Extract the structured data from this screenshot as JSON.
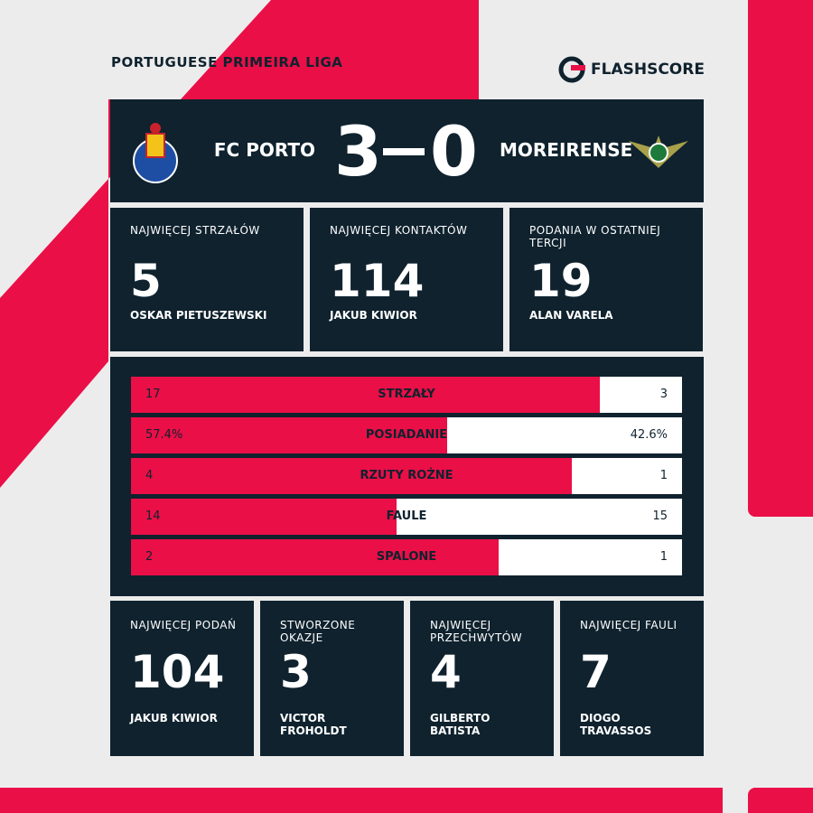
{
  "header": {
    "league": "PORTUGUESE PRIMEIRA LIGA",
    "brand": "FLASHSCORE"
  },
  "match": {
    "home_team": "FC PORTO",
    "home_score": "3",
    "away_score": "0",
    "away_team": "MOREIRENSE"
  },
  "top_cards": [
    {
      "label": "NAJWIĘCEJ STRZAŁÓW",
      "value": "5",
      "player": "OSKAR PIETUSZEWSKI"
    },
    {
      "label": "NAJWIĘCEJ KONTAKTÓW",
      "value": "114",
      "player": "JAKUB KIWIOR"
    },
    {
      "label": "PODANIA W OSTATNIEJ TERCJI",
      "value": "19",
      "player": "ALAN VARELA"
    }
  ],
  "stats": [
    {
      "home": "17",
      "label": "STRZAŁY",
      "away": "3"
    },
    {
      "home": "57.4%",
      "label": "POSIADANIE",
      "away": "42.6%"
    },
    {
      "home": "4",
      "label": "RZUTY ROŻNE",
      "away": "1"
    },
    {
      "home": "14",
      "label": "FAULE",
      "away": "15"
    },
    {
      "home": "2",
      "label": "SPALONE",
      "away": "1"
    }
  ],
  "bottom_cards": [
    {
      "label": "NAJWIĘCEJ PODAŃ",
      "value": "104",
      "player": "JAKUB KIWIOR"
    },
    {
      "label": "STWORZONE OKAZJE",
      "value": "3",
      "player": "VICTOR FROHOLDT"
    },
    {
      "label": "NAJWIĘCEJ PRZECHWYTÓW",
      "value": "4",
      "player": "GILBERTO BATISTA"
    },
    {
      "label": "NAJWIĘCEJ FAULI",
      "value": "7",
      "player": "DIOGO TRAVASSOS"
    }
  ]
}
